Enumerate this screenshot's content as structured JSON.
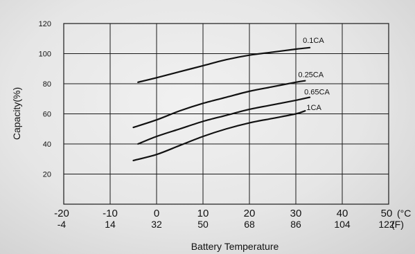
{
  "chart_data": {
    "type": "line",
    "xlabel": "Battery Temperature",
    "ylabel": "Capacity(%)",
    "xlim": [
      -20,
      50
    ],
    "ylim": [
      0,
      120
    ],
    "grid": true,
    "x_ticks_c": [
      "-20",
      "-10",
      "0",
      "10",
      "20",
      "30",
      "40",
      "50"
    ],
    "x_ticks_f": [
      "-4",
      "14",
      "32",
      "50",
      "68",
      "86",
      "104",
      "122"
    ],
    "x_unit_c": "(°C",
    "x_unit_f": "(F)",
    "y_ticks": [
      "20",
      "40",
      "60",
      "80",
      "100",
      "120"
    ],
    "series": [
      {
        "name": "0.1CA",
        "x": [
          -4,
          0,
          5,
          10,
          15,
          20,
          25,
          30,
          33
        ],
        "y": [
          81,
          84,
          88,
          92,
          96,
          99,
          101,
          103,
          104
        ]
      },
      {
        "name": "0.25CA",
        "x": [
          -5,
          0,
          5,
          10,
          15,
          20,
          25,
          30,
          32
        ],
        "y": [
          51,
          56,
          62,
          67,
          71,
          75,
          78,
          81,
          82
        ]
      },
      {
        "name": "0.65CA",
        "x": [
          -4,
          0,
          5,
          10,
          15,
          20,
          25,
          30,
          33
        ],
        "y": [
          40,
          45,
          50,
          55,
          59,
          63,
          66,
          69,
          71
        ]
      },
      {
        "name": "1CA",
        "x": [
          -5,
          0,
          5,
          10,
          15,
          20,
          25,
          30,
          32
        ],
        "y": [
          29,
          33,
          39,
          45,
          50,
          54,
          57,
          60,
          62
        ]
      }
    ]
  }
}
